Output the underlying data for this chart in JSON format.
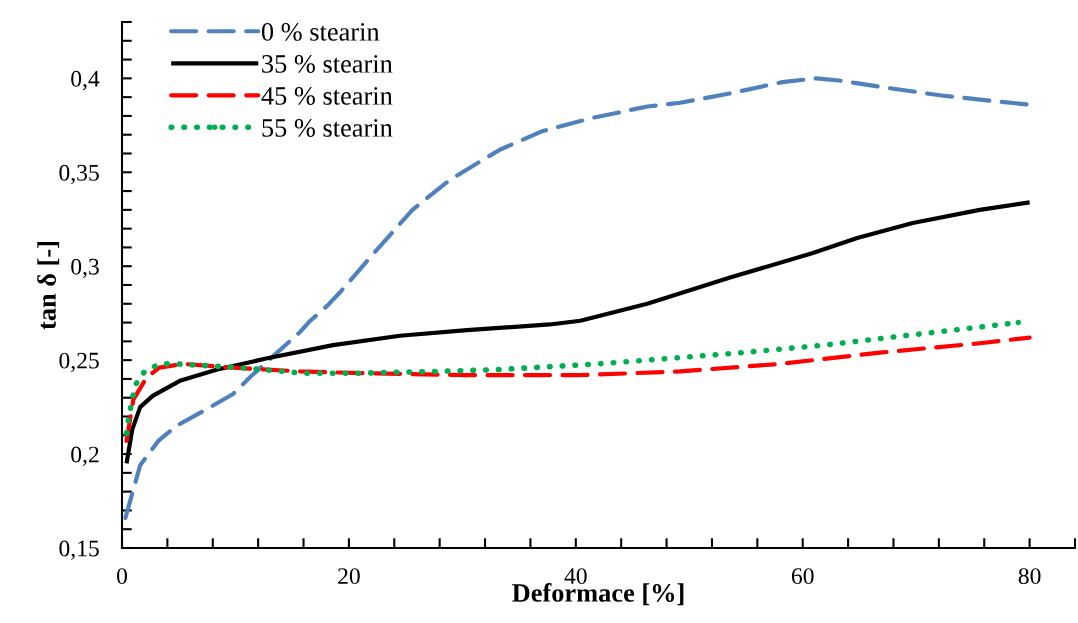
{
  "chart_data": {
    "type": "line",
    "xlabel": "Deformace [%]",
    "ylabel": "tan δ [-]",
    "xlim": [
      0,
      84
    ],
    "xticks": [
      0,
      {
        "value": 4,
        "label": null
      },
      {
        "value": 8,
        "label": null
      },
      {
        "value": 12,
        "label": null
      },
      {
        "value": 16,
        "label": null
      },
      20,
      {
        "value": 24,
        "label": null
      },
      {
        "value": 28,
        "label": null
      },
      {
        "value": 32,
        "label": null
      },
      {
        "value": 36,
        "label": null
      },
      40,
      {
        "value": 44,
        "label": null
      },
      {
        "value": 48,
        "label": null
      },
      {
        "value": 52,
        "label": null
      },
      {
        "value": 56,
        "label": null
      },
      60,
      {
        "value": 64,
        "label": null
      },
      {
        "value": 68,
        "label": null
      },
      {
        "value": 72,
        "label": null
      },
      {
        "value": 76,
        "label": null
      },
      80,
      {
        "value": 84,
        "label": null
      }
    ],
    "ylim": [
      0.15,
      0.43
    ],
    "yticks": [
      {
        "value": 0.15,
        "label": "0,15"
      },
      {
        "value": 0.16,
        "label": null
      },
      {
        "value": 0.17,
        "label": null
      },
      {
        "value": 0.18,
        "label": null
      },
      {
        "value": 0.19,
        "label": null
      },
      {
        "value": 0.2,
        "label": "0,2"
      },
      {
        "value": 0.21,
        "label": null
      },
      {
        "value": 0.22,
        "label": null
      },
      {
        "value": 0.23,
        "label": null
      },
      {
        "value": 0.24,
        "label": null
      },
      {
        "value": 0.25,
        "label": "0,25"
      },
      {
        "value": 0.26,
        "label": null
      },
      {
        "value": 0.27,
        "label": null
      },
      {
        "value": 0.28,
        "label": null
      },
      {
        "value": 0.29,
        "label": null
      },
      {
        "value": 0.3,
        "label": "0,3"
      },
      {
        "value": 0.31,
        "label": null
      },
      {
        "value": 0.32,
        "label": null
      },
      {
        "value": 0.33,
        "label": null
      },
      {
        "value": 0.34,
        "label": null
      },
      {
        "value": 0.35,
        "label": "0,35"
      },
      {
        "value": 0.36,
        "label": null
      },
      {
        "value": 0.37,
        "label": null
      },
      {
        "value": 0.38,
        "label": null
      },
      {
        "value": 0.39,
        "label": null
      },
      {
        "value": 0.4,
        "label": "0,4"
      },
      {
        "value": 0.41,
        "label": null
      },
      {
        "value": 0.42,
        "label": null
      },
      {
        "value": 0.43,
        "label": null
      }
    ],
    "grid": false,
    "legend": "top left",
    "series": [
      {
        "name": "0 % stearin",
        "color": "#4f81bd",
        "line_style": "dashed",
        "x": [
          0.3,
          1.6,
          3.2,
          4.8,
          7.5,
          9.8,
          11.3,
          13.3,
          15.7,
          16.6,
          18.1,
          19.2,
          22.5,
          25.6,
          28.9,
          33.3,
          37.1,
          41.5,
          46.3,
          49.2,
          53.6,
          58.2,
          61.2,
          63,
          67.4,
          72.1,
          76.7,
          80
        ],
        "values": [
          0.166,
          0.194,
          0.207,
          0.215,
          0.224,
          0.232,
          0.241,
          0.252,
          0.265,
          0.271,
          0.279,
          0.286,
          0.309,
          0.33,
          0.346,
          0.362,
          0.372,
          0.379,
          0.385,
          0.387,
          0.392,
          0.398,
          0.4,
          0.399,
          0.395,
          0.391,
          0.388,
          0.386
        ]
      },
      {
        "name": "35 % stearin",
        "color": "#000000",
        "line_style": "solid",
        "x": [
          0.4,
          0.9,
          1.6,
          2.7,
          5.1,
          8.4,
          12.8,
          18.6,
          24.5,
          30.4,
          37.7,
          40.4,
          46.3,
          53.6,
          60.9,
          64.8,
          69.7,
          75.6,
          80
        ],
        "values": [
          0.195,
          0.213,
          0.225,
          0.231,
          0.239,
          0.245,
          0.251,
          0.258,
          0.263,
          0.266,
          0.269,
          0.271,
          0.28,
          0.294,
          0.307,
          0.315,
          0.323,
          0.33,
          0.334
        ]
      },
      {
        "name": "45 % stearin",
        "color": "#ff0000",
        "line_style": "dashed",
        "x": [
          0.4,
          1,
          2.2,
          3.3,
          5.4,
          9.8,
          15.7,
          21.6,
          30.4,
          40.4,
          49.2,
          58,
          66.8,
          75.6,
          80
        ],
        "values": [
          0.207,
          0.229,
          0.241,
          0.246,
          0.248,
          0.246,
          0.244,
          0.243,
          0.242,
          0.242,
          0.244,
          0.248,
          0.254,
          0.259,
          0.262
        ]
      },
      {
        "name": "55 % stearin",
        "color": "#00b050",
        "line_style": "dotted",
        "x": [
          0.4,
          0.6,
          0.9,
          1.2,
          2,
          3.3,
          4.8,
          10.4,
          16.1,
          20.4,
          27.6,
          33.3,
          41.9,
          46.3,
          54.7,
          61.9,
          69,
          76.2,
          79
        ],
        "values": [
          0.211,
          0.22,
          0.229,
          0.237,
          0.244,
          0.248,
          0.248,
          0.246,
          0.243,
          0.243,
          0.244,
          0.245,
          0.248,
          0.25,
          0.254,
          0.258,
          0.263,
          0.268,
          0.27
        ]
      }
    ]
  }
}
